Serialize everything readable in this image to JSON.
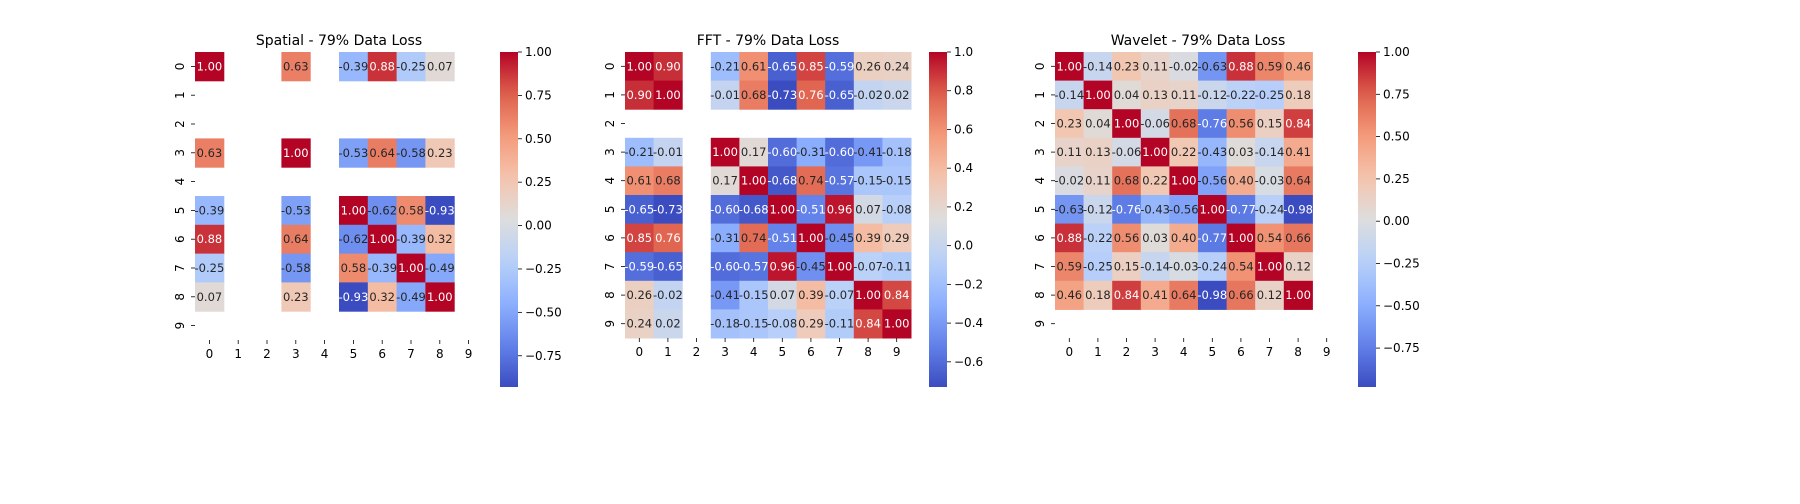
{
  "chart_data": [
    {
      "type": "heatmap",
      "title": "Spatial - 79% Data Loss",
      "x_ticks": [
        "0",
        "1",
        "2",
        "3",
        "4",
        "5",
        "6",
        "7",
        "8",
        "9"
      ],
      "y_ticks": [
        "0",
        "1",
        "2",
        "3",
        "4",
        "5",
        "6",
        "7",
        "8",
        "9"
      ],
      "colorbar": {
        "min": -0.93,
        "max": 1.0,
        "ticks": [
          -0.75,
          -0.5,
          -0.25,
          0.0,
          0.25,
          0.5,
          0.75,
          1.0
        ],
        "tick_labels": [
          "−0.75",
          "−0.50",
          "−0.25",
          "0.00",
          "0.25",
          "0.50",
          "0.75",
          "1.00"
        ]
      },
      "values": [
        [
          1.0,
          null,
          null,
          0.63,
          null,
          -0.39,
          0.88,
          -0.25,
          0.07,
          null
        ],
        [
          null,
          null,
          null,
          null,
          null,
          null,
          null,
          null,
          null,
          null
        ],
        [
          null,
          null,
          null,
          null,
          null,
          null,
          null,
          null,
          null,
          null
        ],
        [
          0.63,
          null,
          null,
          1.0,
          null,
          -0.53,
          0.64,
          -0.58,
          0.23,
          null
        ],
        [
          null,
          null,
          null,
          null,
          null,
          null,
          null,
          null,
          null,
          null
        ],
        [
          -0.39,
          null,
          null,
          -0.53,
          null,
          1.0,
          -0.62,
          0.58,
          -0.93,
          null
        ],
        [
          0.88,
          null,
          null,
          0.64,
          null,
          -0.62,
          1.0,
          -0.39,
          0.32,
          null
        ],
        [
          -0.25,
          null,
          null,
          -0.58,
          null,
          0.58,
          -0.39,
          1.0,
          -0.49,
          null
        ],
        [
          0.07,
          null,
          null,
          0.23,
          null,
          -0.93,
          0.32,
          -0.49,
          1.0,
          null
        ],
        [
          null,
          null,
          null,
          null,
          null,
          null,
          null,
          null,
          null,
          null
        ]
      ]
    },
    {
      "type": "heatmap",
      "title": "FFT - 79% Data Loss",
      "x_ticks": [
        "0",
        "1",
        "2",
        "3",
        "4",
        "5",
        "6",
        "7",
        "8",
        "9"
      ],
      "y_ticks": [
        "0",
        "1",
        "2",
        "3",
        "4",
        "5",
        "6",
        "7",
        "8",
        "9"
      ],
      "colorbar": {
        "min": -0.73,
        "max": 1.0,
        "ticks": [
          -0.6,
          -0.4,
          -0.2,
          0.0,
          0.2,
          0.4,
          0.6,
          0.8,
          1.0
        ],
        "tick_labels": [
          "−0.6",
          "−0.4",
          "−0.2",
          "0.0",
          "0.2",
          "0.4",
          "0.6",
          "0.8",
          "1.0"
        ]
      },
      "values": [
        [
          1.0,
          0.9,
          null,
          -0.21,
          0.61,
          -0.65,
          0.85,
          -0.59,
          0.26,
          0.24
        ],
        [
          0.9,
          1.0,
          null,
          -0.01,
          0.68,
          -0.73,
          0.76,
          -0.65,
          -0.02,
          0.02
        ],
        [
          null,
          null,
          null,
          null,
          null,
          null,
          null,
          null,
          null,
          null
        ],
        [
          -0.21,
          -0.01,
          null,
          1.0,
          0.17,
          -0.6,
          -0.31,
          -0.6,
          -0.41,
          -0.18
        ],
        [
          0.61,
          0.68,
          null,
          0.17,
          1.0,
          -0.68,
          0.74,
          -0.57,
          -0.15,
          -0.15
        ],
        [
          -0.65,
          -0.73,
          null,
          -0.6,
          -0.68,
          1.0,
          -0.51,
          0.96,
          0.07,
          -0.08
        ],
        [
          0.85,
          0.76,
          null,
          -0.31,
          0.74,
          -0.51,
          1.0,
          -0.45,
          0.39,
          0.29
        ],
        [
          -0.59,
          -0.65,
          null,
          -0.6,
          -0.57,
          0.96,
          -0.45,
          1.0,
          -0.07,
          -0.11
        ],
        [
          0.26,
          -0.02,
          null,
          -0.41,
          -0.15,
          0.07,
          0.39,
          -0.07,
          1.0,
          0.84
        ],
        [
          0.24,
          0.02,
          null,
          -0.18,
          -0.15,
          -0.08,
          0.29,
          -0.11,
          0.84,
          1.0
        ]
      ]
    },
    {
      "type": "heatmap",
      "title": "Wavelet - 79% Data Loss",
      "x_ticks": [
        "0",
        "1",
        "2",
        "3",
        "4",
        "5",
        "6",
        "7",
        "8",
        "9"
      ],
      "y_ticks": [
        "0",
        "1",
        "2",
        "3",
        "4",
        "5",
        "6",
        "7",
        "8",
        "9"
      ],
      "colorbar": {
        "min": -0.98,
        "max": 1.0,
        "ticks": [
          -0.75,
          -0.5,
          -0.25,
          0.0,
          0.25,
          0.5,
          0.75,
          1.0
        ],
        "tick_labels": [
          "−0.75",
          "−0.50",
          "−0.25",
          "0.00",
          "0.25",
          "0.50",
          "0.75",
          "1.00"
        ]
      },
      "values": [
        [
          1.0,
          -0.14,
          0.23,
          0.11,
          -0.02,
          -0.63,
          0.88,
          0.59,
          0.46,
          null
        ],
        [
          -0.14,
          1.0,
          0.04,
          0.13,
          0.11,
          -0.12,
          -0.22,
          -0.25,
          0.18,
          null
        ],
        [
          0.23,
          0.04,
          1.0,
          -0.06,
          0.68,
          -0.76,
          0.56,
          0.15,
          0.84,
          null
        ],
        [
          0.11,
          0.13,
          -0.06,
          1.0,
          0.22,
          -0.43,
          0.03,
          -0.14,
          0.41,
          null
        ],
        [
          -0.02,
          0.11,
          0.68,
          0.22,
          1.0,
          -0.56,
          0.4,
          -0.03,
          0.64,
          null
        ],
        [
          -0.63,
          -0.12,
          -0.76,
          -0.43,
          -0.56,
          1.0,
          -0.77,
          -0.24,
          -0.98,
          null
        ],
        [
          0.88,
          -0.22,
          0.56,
          0.03,
          0.4,
          -0.77,
          1.0,
          0.54,
          0.66,
          null
        ],
        [
          0.59,
          -0.25,
          0.15,
          -0.14,
          -0.03,
          -0.24,
          0.54,
          1.0,
          0.12,
          null
        ],
        [
          0.46,
          0.18,
          0.84,
          0.41,
          0.64,
          -0.98,
          0.66,
          0.12,
          1.0,
          null
        ],
        [
          null,
          null,
          null,
          null,
          null,
          null,
          null,
          null,
          null,
          null
        ]
      ]
    }
  ]
}
